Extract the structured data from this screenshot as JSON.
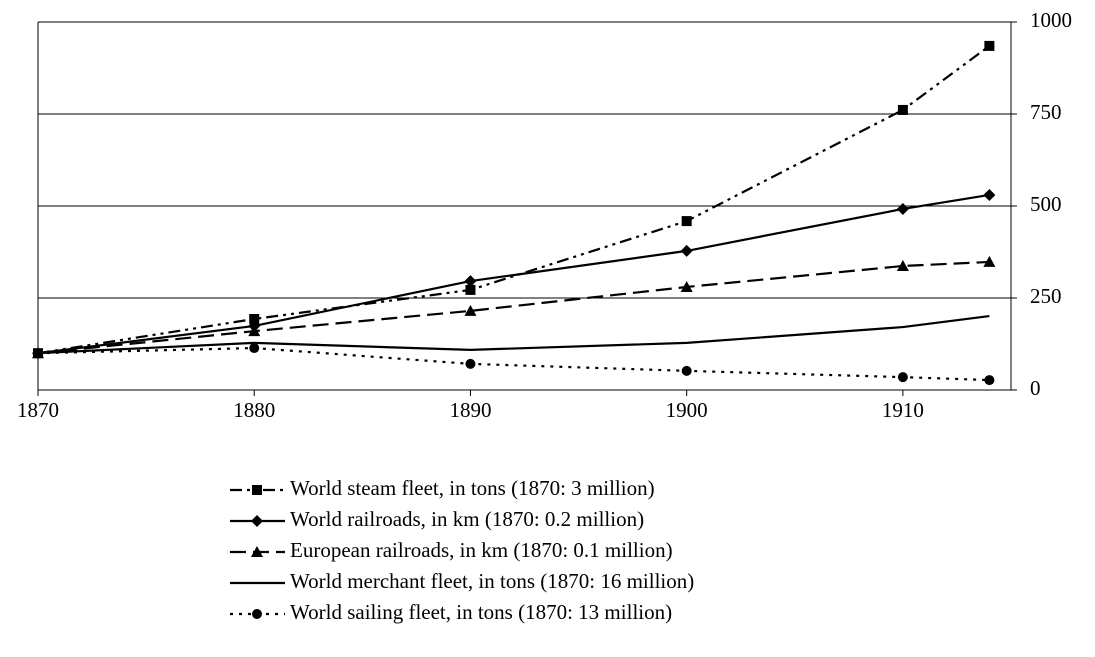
{
  "chart_data": {
    "type": "line",
    "x": [
      1870,
      1880,
      1890,
      1900,
      1910,
      1914
    ],
    "xlim": [
      1870,
      1915
    ],
    "xticks": [
      1870,
      1880,
      1890,
      1900,
      1910
    ],
    "ylim": [
      0,
      1000
    ],
    "yticks": [
      0,
      250,
      500,
      750,
      1000
    ],
    "grid": true,
    "y_axis_side": "right",
    "legend": "bottom",
    "series": [
      {
        "name": "World steam fleet, in tons (1870: 3 million)",
        "color": "#000000",
        "line_style": "dash-dot-dot",
        "marker": "square",
        "values": [
          100,
          193,
          272,
          459,
          761,
          935
        ]
      },
      {
        "name": "World railroads, in km (1870: 0.2 million)",
        "color": "#000000",
        "line_style": "solid",
        "marker": "diamond",
        "values": [
          100,
          174,
          296,
          378,
          492,
          530
        ]
      },
      {
        "name": "European railroads, in km (1870: 0.1 million)",
        "color": "#000000",
        "line_style": "long-dash",
        "marker": "triangle",
        "values": [
          100,
          160,
          215,
          280,
          337,
          348
        ]
      },
      {
        "name": "World merchant fleet, in tons (1870: 16 million)",
        "color": "#000000",
        "line_style": "solid",
        "marker": "none",
        "values": [
          100,
          128,
          109,
          128,
          171,
          201
        ]
      },
      {
        "name": "World sailing fleet, in tons (1870: 13 million)",
        "color": "#000000",
        "line_style": "dotted",
        "marker": "circle",
        "values": [
          100,
          114,
          71,
          52,
          35,
          27
        ]
      }
    ]
  }
}
